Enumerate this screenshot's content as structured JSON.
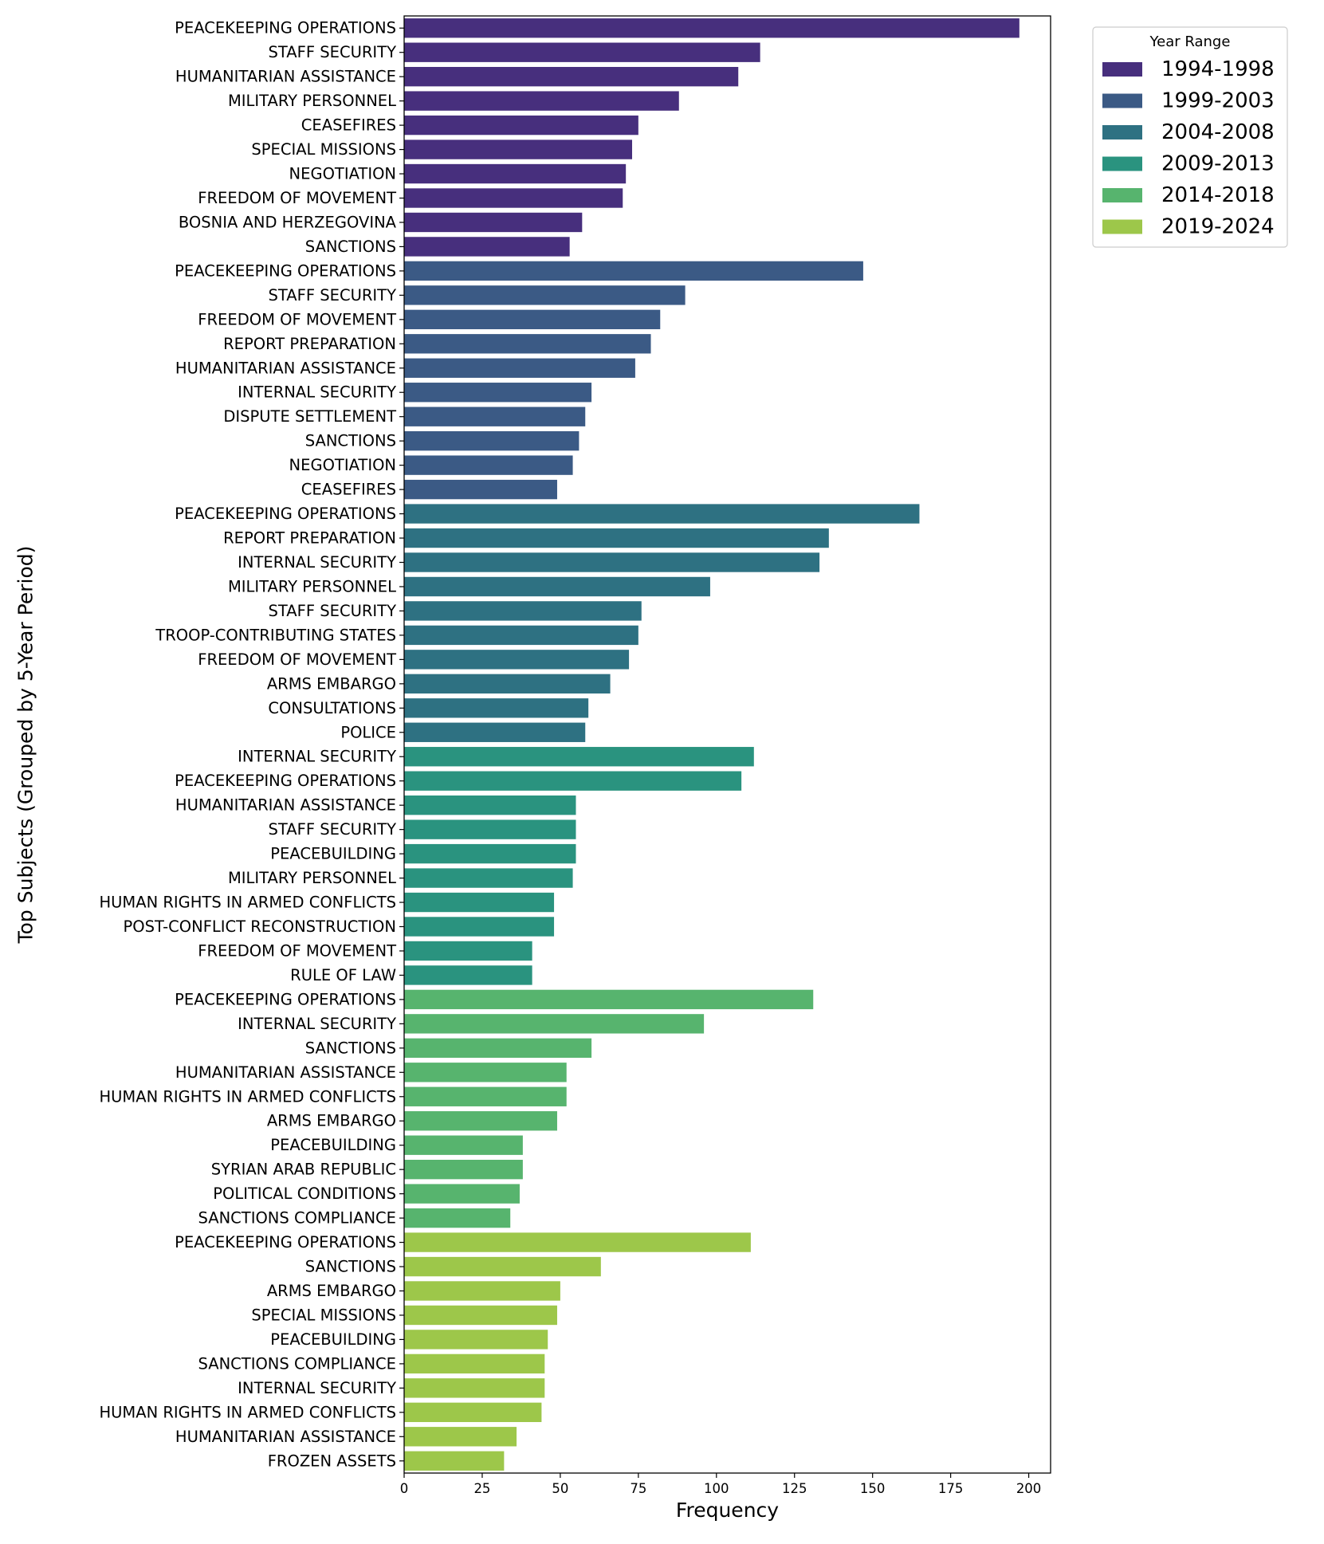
{
  "chart_data": {
    "type": "bar",
    "orientation": "horizontal",
    "title": "",
    "xlabel": "Frequency",
    "ylabel": "Top Subjects (Grouped by 5-Year Period)",
    "xlim": [
      0,
      207
    ],
    "xticks": [
      0,
      25,
      50,
      75,
      100,
      125,
      150,
      175,
      200
    ],
    "grid": false,
    "legend": {
      "title": "Year Range",
      "placement": "top-right, outside the axes",
      "entries": [
        "1994-1998",
        "1999-2003",
        "2004-2008",
        "2009-2013",
        "2014-2018",
        "2019-2024"
      ]
    },
    "series": [
      {
        "name": "1994-1998",
        "color": "#472f7d",
        "categories": [
          "PEACEKEEPING OPERATIONS",
          "STAFF SECURITY",
          "HUMANITARIAN ASSISTANCE",
          "MILITARY PERSONNEL",
          "CEASEFIRES",
          "SPECIAL MISSIONS",
          "NEGOTIATION",
          "FREEDOM OF MOVEMENT",
          "BOSNIA AND HERZEGOVINA",
          "SANCTIONS"
        ],
        "values": [
          197,
          114,
          107,
          88,
          75,
          73,
          71,
          70,
          57,
          53
        ]
      },
      {
        "name": "1999-2003",
        "color": "#3b5a85",
        "categories": [
          "PEACEKEEPING OPERATIONS",
          "STAFF SECURITY",
          "FREEDOM OF MOVEMENT",
          "REPORT PREPARATION",
          "HUMANITARIAN ASSISTANCE",
          "INTERNAL SECURITY",
          "DISPUTE SETTLEMENT",
          "SANCTIONS",
          "NEGOTIATION",
          "CEASEFIRES"
        ],
        "values": [
          147,
          90,
          82,
          79,
          74,
          60,
          58,
          56,
          54,
          49
        ]
      },
      {
        "name": "2004-2008",
        "color": "#2e7182",
        "categories": [
          "PEACEKEEPING OPERATIONS",
          "REPORT PREPARATION",
          "INTERNAL SECURITY",
          "MILITARY PERSONNEL",
          "STAFF SECURITY",
          "TROOP-CONTRIBUTING STATES",
          "FREEDOM OF MOVEMENT",
          "ARMS EMBARGO",
          "CONSULTATIONS",
          "POLICE"
        ],
        "values": [
          165,
          136,
          133,
          98,
          76,
          75,
          72,
          66,
          59,
          58
        ]
      },
      {
        "name": "2009-2013",
        "color": "#2a937f",
        "categories": [
          "INTERNAL SECURITY",
          "PEACEKEEPING OPERATIONS",
          "HUMANITARIAN ASSISTANCE",
          "STAFF SECURITY",
          "PEACEBUILDING",
          "MILITARY PERSONNEL",
          "HUMAN RIGHTS IN ARMED CONFLICTS",
          "POST-CONFLICT RECONSTRUCTION",
          "FREEDOM OF MOVEMENT",
          "RULE OF LAW"
        ],
        "values": [
          112,
          108,
          55,
          55,
          55,
          54,
          48,
          48,
          41,
          41
        ]
      },
      {
        "name": "2014-2018",
        "color": "#57b46e",
        "categories": [
          "PEACEKEEPING OPERATIONS",
          "INTERNAL SECURITY",
          "SANCTIONS",
          "HUMANITARIAN ASSISTANCE",
          "HUMAN RIGHTS IN ARMED CONFLICTS",
          "ARMS EMBARGO",
          "PEACEBUILDING",
          "SYRIAN ARAB REPUBLIC",
          "POLITICAL CONDITIONS",
          "SANCTIONS COMPLIANCE"
        ],
        "values": [
          131,
          96,
          60,
          52,
          52,
          49,
          38,
          38,
          37,
          34
        ]
      },
      {
        "name": "2019-2024",
        "color": "#9dc74a",
        "categories": [
          "PEACEKEEPING OPERATIONS",
          "SANCTIONS",
          "ARMS EMBARGO",
          "SPECIAL MISSIONS",
          "PEACEBUILDING",
          "SANCTIONS COMPLIANCE",
          "INTERNAL SECURITY",
          "HUMAN RIGHTS IN ARMED CONFLICTS",
          "HUMANITARIAN ASSISTANCE",
          "FROZEN ASSETS"
        ],
        "values": [
          111,
          63,
          50,
          49,
          46,
          45,
          45,
          44,
          36,
          32
        ]
      }
    ]
  }
}
